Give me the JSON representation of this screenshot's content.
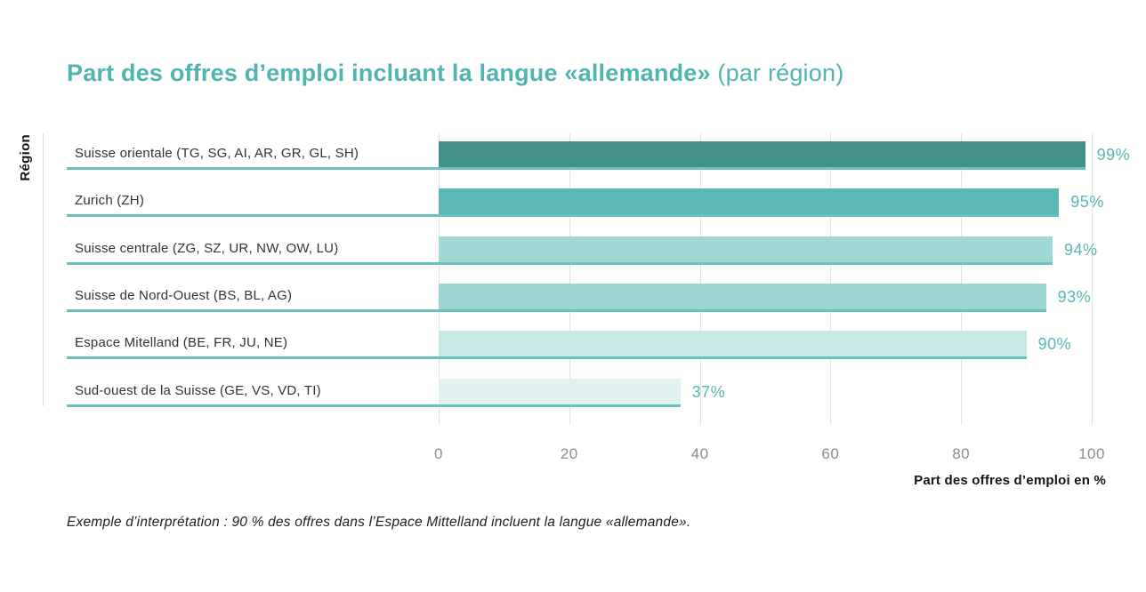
{
  "title": {
    "main": "Part des offres d’emploi incluant la langue «allemande»",
    "suffix": "(par région)"
  },
  "chart_data": {
    "type": "bar",
    "orientation": "horizontal",
    "title": "Part des offres d’emploi incluant la langue «allemande» (par région)",
    "categories": [
      "Suisse orientale (TG, SG, AI, AR, GR, GL, SH)",
      "Zurich (ZH)",
      "Suisse centrale (ZG, SZ, UR, NW, OW, LU)",
      "Suisse de Nord-Ouest (BS, BL, AG)",
      "Espace Mitelland (BE, FR, JU, NE)",
      "Sud-ouest de la Suisse (GE, VS, VD, TI)"
    ],
    "values": [
      99,
      95,
      94,
      93,
      90,
      37
    ],
    "value_labels": [
      "99%",
      "95%",
      "94%",
      "93%",
      "90%",
      "37%"
    ],
    "bar_colors": [
      "#438f8c",
      "#5cb8b3",
      "#a0d8d4",
      "#9dd6d2",
      "#c8e8e5",
      "#e0f1ef"
    ],
    "xlabel": "Part des offres d’emploi en %",
    "ylabel": "Région",
    "xlim": [
      0,
      100
    ],
    "xticks": [
      "0",
      "20",
      "40",
      "60",
      "80",
      "100"
    ],
    "grid": "vertical",
    "legend": "none"
  },
  "footnote": "Exemple d’interprétation : 90 % des offres dans l’Espace Mittelland incluent la langue «allemande».",
  "colors": {
    "title": "#50b4af",
    "value_label": "#58b7b2",
    "row_line": "#68c2bd",
    "axis_line": "#dcdcdc",
    "gridline": "#e3e3e3",
    "tick_label": "#8c8c8c",
    "category_label": "#333333",
    "text": "#141414"
  }
}
